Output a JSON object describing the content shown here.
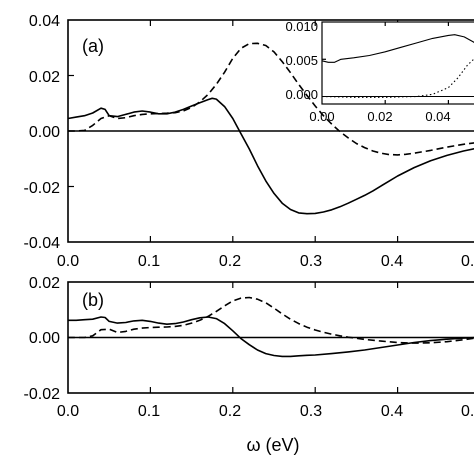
{
  "chart_data": [
    {
      "type": "line",
      "panel_label": "(a)",
      "xlim": [
        0.0,
        0.5
      ],
      "ylim": [
        -0.04,
        0.04
      ],
      "x_tick_labels": [
        "0.0",
        "0.1",
        "0.2",
        "0.3",
        "0.4",
        "0."
      ],
      "y_tick_labels": [
        "0.04",
        "0.02",
        "0.00",
        "-0.02",
        "-0.04"
      ],
      "series": [
        {
          "style": "solid",
          "x": [
            0.0,
            0.01,
            0.02,
            0.03,
            0.04,
            0.045,
            0.05,
            0.06,
            0.07,
            0.08,
            0.09,
            0.1,
            0.11,
            0.12,
            0.13,
            0.14,
            0.15,
            0.16,
            0.17,
            0.175,
            0.18,
            0.19,
            0.2,
            0.21,
            0.22,
            0.23,
            0.24,
            0.25,
            0.26,
            0.27,
            0.28,
            0.29,
            0.3,
            0.31,
            0.32,
            0.33,
            0.34,
            0.35,
            0.36,
            0.37,
            0.38,
            0.39,
            0.4,
            0.42,
            0.44,
            0.46,
            0.48,
            0.5
          ],
          "y": [
            0.0045,
            0.005,
            0.0055,
            0.0065,
            0.0082,
            0.0078,
            0.0055,
            0.0052,
            0.006,
            0.0068,
            0.0072,
            0.0068,
            0.0062,
            0.0062,
            0.0068,
            0.0078,
            0.009,
            0.0102,
            0.0113,
            0.0118,
            0.0115,
            0.0088,
            0.0045,
            -0.001,
            -0.0065,
            -0.0125,
            -0.018,
            -0.0225,
            -0.026,
            -0.0283,
            -0.0295,
            -0.0298,
            -0.0297,
            -0.0292,
            -0.0284,
            -0.0273,
            -0.026,
            -0.0246,
            -0.0232,
            -0.0216,
            -0.0198,
            -0.018,
            -0.0162,
            -0.0132,
            -0.0107,
            -0.0088,
            -0.0072,
            -0.006
          ]
        },
        {
          "style": "dashed",
          "x": [
            0.0,
            0.01,
            0.02,
            0.03,
            0.04,
            0.05,
            0.06,
            0.07,
            0.08,
            0.09,
            0.1,
            0.11,
            0.12,
            0.13,
            0.14,
            0.15,
            0.16,
            0.17,
            0.18,
            0.19,
            0.2,
            0.21,
            0.22,
            0.23,
            0.24,
            0.25,
            0.26,
            0.27,
            0.28,
            0.29,
            0.3,
            0.31,
            0.32,
            0.33,
            0.34,
            0.35,
            0.36,
            0.37,
            0.38,
            0.39,
            0.4,
            0.41,
            0.42,
            0.44,
            0.46,
            0.48,
            0.5
          ],
          "y": [
            0.0,
            0.0,
            0.0002,
            0.002,
            0.0045,
            0.0055,
            0.0045,
            0.0048,
            0.0055,
            0.006,
            0.0062,
            0.0063,
            0.0064,
            0.0066,
            0.0072,
            0.0085,
            0.0105,
            0.0132,
            0.0168,
            0.0212,
            0.0262,
            0.0298,
            0.0315,
            0.0316,
            0.0308,
            0.0285,
            0.025,
            0.021,
            0.0168,
            0.0128,
            0.009,
            0.0055,
            0.0025,
            -0.0002,
            -0.0025,
            -0.0045,
            -0.006,
            -0.0072,
            -0.008,
            -0.0085,
            -0.0086,
            -0.0084,
            -0.008,
            -0.007,
            -0.0058,
            -0.0048,
            -0.004
          ]
        }
      ],
      "inset": {
        "xlim": [
          0.0,
          0.05
        ],
        "ylim": [
          -0.001,
          0.01
        ],
        "x_tick_labels": [
          "0.00",
          "0.02",
          "0.04"
        ],
        "y_tick_labels": [
          "0.010",
          "0.005",
          "0.000"
        ],
        "series": [
          {
            "style": "solid",
            "x": [
              0.0,
              0.002,
              0.004,
              0.006,
              0.01,
              0.015,
              0.02,
              0.025,
              0.03,
              0.035,
              0.04,
              0.042,
              0.045,
              0.048,
              0.05
            ],
            "y": [
              0.0048,
              0.0046,
              0.0046,
              0.005,
              0.0052,
              0.0055,
              0.006,
              0.0066,
              0.0072,
              0.0078,
              0.0082,
              0.0083,
              0.008,
              0.0073,
              0.0065
            ]
          },
          {
            "style": "dotted",
            "x": [
              0.0,
              0.01,
              0.02,
              0.03,
              0.035,
              0.04,
              0.043,
              0.046,
              0.05
            ],
            "y": [
              0.0,
              -0.0001,
              -0.0001,
              0.0,
              0.0003,
              0.0012,
              0.0025,
              0.0042,
              0.0058
            ]
          }
        ]
      }
    },
    {
      "type": "line",
      "panel_label": "(b)",
      "xlim": [
        0.0,
        0.5
      ],
      "ylim": [
        -0.02,
        0.02
      ],
      "x_tick_labels": [
        "0.0",
        "0.1",
        "0.2",
        "0.3",
        "0.4",
        "0."
      ],
      "y_tick_labels": [
        "0.02",
        "0.00",
        "-0.02"
      ],
      "xlabel": "ω (eV)",
      "series": [
        {
          "style": "solid",
          "x": [
            0.0,
            0.01,
            0.02,
            0.03,
            0.04,
            0.045,
            0.05,
            0.06,
            0.07,
            0.08,
            0.09,
            0.1,
            0.11,
            0.12,
            0.13,
            0.14,
            0.15,
            0.16,
            0.17,
            0.18,
            0.19,
            0.2,
            0.21,
            0.22,
            0.23,
            0.24,
            0.25,
            0.26,
            0.27,
            0.28,
            0.29,
            0.3,
            0.32,
            0.34,
            0.36,
            0.38,
            0.4,
            0.42,
            0.44,
            0.46,
            0.48,
            0.5
          ],
          "y": [
            0.0062,
            0.0062,
            0.0064,
            0.0066,
            0.0074,
            0.0072,
            0.0058,
            0.0052,
            0.0054,
            0.006,
            0.0062,
            0.0058,
            0.0052,
            0.0048,
            0.005,
            0.0056,
            0.0064,
            0.0071,
            0.0074,
            0.0068,
            0.005,
            0.0024,
            -0.0004,
            -0.0026,
            -0.0045,
            -0.0058,
            -0.0065,
            -0.0068,
            -0.0068,
            -0.0066,
            -0.0064,
            -0.0063,
            -0.0058,
            -0.0052,
            -0.0045,
            -0.0036,
            -0.0027,
            -0.0018,
            -0.0011,
            -0.0006,
            -0.0002,
            0.0
          ]
        },
        {
          "style": "dashed",
          "x": [
            0.0,
            0.02,
            0.03,
            0.04,
            0.05,
            0.06,
            0.07,
            0.08,
            0.09,
            0.1,
            0.11,
            0.12,
            0.13,
            0.14,
            0.15,
            0.16,
            0.17,
            0.18,
            0.19,
            0.2,
            0.21,
            0.22,
            0.23,
            0.24,
            0.25,
            0.26,
            0.27,
            0.28,
            0.29,
            0.3,
            0.31,
            0.32,
            0.33,
            0.34,
            0.35,
            0.36,
            0.38,
            0.4,
            0.42,
            0.44,
            0.46,
            0.48,
            0.5
          ],
          "y": [
            0.0,
            0.0,
            0.0006,
            0.0028,
            0.003,
            0.0018,
            0.0022,
            0.003,
            0.0034,
            0.0036,
            0.0037,
            0.0038,
            0.004,
            0.0044,
            0.0052,
            0.0062,
            0.0076,
            0.0094,
            0.0114,
            0.0132,
            0.0142,
            0.0144,
            0.0138,
            0.0125,
            0.0106,
            0.0085,
            0.0066,
            0.005,
            0.0037,
            0.0027,
            0.0019,
            0.0012,
            0.0006,
            0.0001,
            -0.0003,
            -0.0007,
            -0.0013,
            -0.0018,
            -0.002,
            -0.0019,
            -0.0015,
            -0.0008,
            0.0
          ]
        }
      ]
    }
  ]
}
